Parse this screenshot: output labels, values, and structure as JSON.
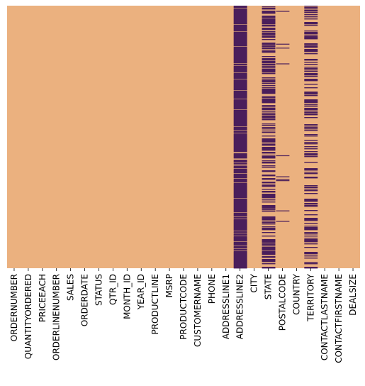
{
  "chart_data": {
    "type": "heatmap",
    "title": "",
    "xlabel": "",
    "ylabel": "",
    "description_note": "",
    "y_ticks_shown": false,
    "colorbar_shown": false,
    "colors": {
      "present": "#EBB17F",
      "missing": "#4A1E5B"
    },
    "columns": [
      "ORDERNUMBER",
      "QUANTITYORDERED",
      "PRICEEACH",
      "ORDERLINENUMBER",
      "SALES",
      "ORDERDATE",
      "STATUS",
      "QTR_ID",
      "MONTH_ID",
      "YEAR_ID",
      "PRODUCTLINE",
      "MSRP",
      "PRODUCTCODE",
      "CUSTOMERNAME",
      "PHONE",
      "ADDRESSLINE1",
      "ADDRESSLINE2",
      "CITY",
      "STATE",
      "POSTALCODE",
      "COUNTRY",
      "TERRITORY",
      "CONTACTLASTNAME",
      "CONTACTFIRSTNAME",
      "DEALSIZE"
    ],
    "missing_fraction": [
      0,
      0,
      0,
      0,
      0,
      0,
      0,
      0,
      0,
      0,
      0,
      0,
      0,
      0,
      0,
      0,
      0.89,
      0,
      0.53,
      0.027,
      0,
      0.38,
      0,
      0,
      0
    ],
    "missing_style": [
      "none",
      "none",
      "none",
      "none",
      "none",
      "none",
      "none",
      "none",
      "none",
      "none",
      "none",
      "none",
      "none",
      "none",
      "none",
      "none",
      "dense",
      "none",
      "striped",
      "sparse",
      "none",
      "striped",
      "none",
      "none",
      "none"
    ],
    "row_samples": 370
  }
}
